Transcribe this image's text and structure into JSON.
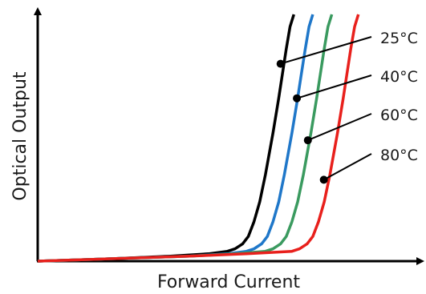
{
  "chart_data": {
    "type": "line",
    "title": "",
    "xlabel": "Forward Current",
    "ylabel": "Optical Output",
    "xlim": [
      0,
      100
    ],
    "ylim": [
      0,
      100
    ],
    "grid": false,
    "ticks": false,
    "legend": "callout labels at right of curves",
    "series": [
      {
        "name": "25°C",
        "color": "#000000",
        "x": [
          0,
          20,
          35,
          45,
          50,
          52,
          54,
          55.5,
          57,
          58.5,
          60,
          62,
          63.5,
          64.5,
          65.5,
          66.5,
          67.5
        ],
        "y": [
          0,
          1,
          2,
          3,
          4,
          5,
          7,
          10,
          16,
          24,
          35,
          52,
          66,
          76,
          86,
          95,
          100
        ],
        "label_point": {
          "x": 64,
          "y": 80
        }
      },
      {
        "name": "40°C",
        "color": "#1f77c9",
        "x": [
          0,
          20,
          40,
          50,
          55,
          57,
          59,
          60.5,
          62,
          63.5,
          65,
          67,
          68.5,
          69.5,
          70.5,
          71.5,
          72.5
        ],
        "y": [
          0,
          1,
          2,
          3,
          4,
          5,
          7,
          10,
          16,
          24,
          35,
          52,
          66,
          76,
          86,
          95,
          100
        ],
        "label_point": {
          "x": 68.3,
          "y": 66
        }
      },
      {
        "name": "60°C",
        "color": "#3a9a5f",
        "x": [
          0,
          20,
          40,
          52,
          60,
          62,
          64,
          65.5,
          67,
          68.5,
          70,
          72,
          73.5,
          74.5,
          75.5,
          76.5,
          77.5
        ],
        "y": [
          0,
          1,
          2,
          3,
          4,
          5,
          7,
          10,
          16,
          24,
          35,
          52,
          66,
          76,
          86,
          95,
          100
        ],
        "label_point": {
          "x": 71.2,
          "y": 49
        }
      },
      {
        "name": "80°C",
        "color": "#e8201c",
        "x": [
          0,
          20,
          40,
          55,
          67,
          69,
          71,
          72.5,
          74,
          75.5,
          77,
          79,
          80.5,
          81.5,
          82.5,
          83.5,
          84.5
        ],
        "y": [
          0,
          1,
          2,
          3,
          4,
          5,
          7,
          10,
          16,
          24,
          35,
          52,
          66,
          76,
          86,
          95,
          100
        ],
        "label_point": {
          "x": 75.4,
          "y": 33
        }
      }
    ]
  }
}
